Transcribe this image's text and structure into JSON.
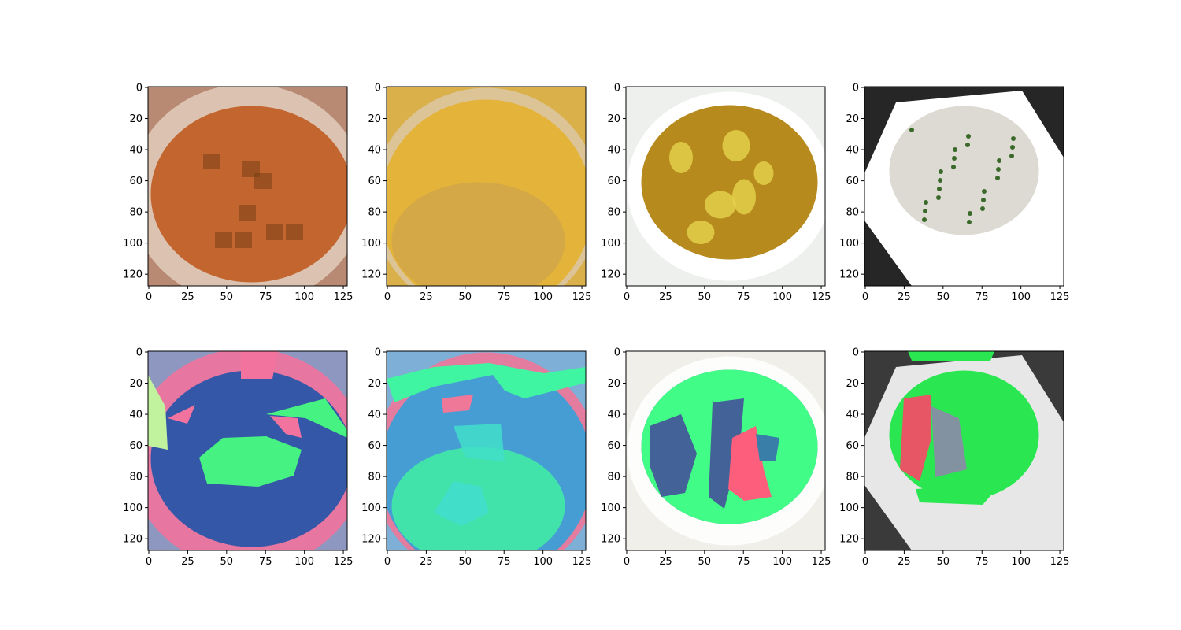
{
  "figure": {
    "background": "#ffffff",
    "panels": [
      {
        "id": "top-1",
        "description": "tomato soup with croutons in white bowl",
        "palette": {
          "bg": "#b88a73",
          "a": "#c2652e",
          "b": "#a85a2a",
          "c": "#e0c9b8",
          "d": "#7a3f18"
        },
        "overlay": false
      },
      {
        "id": "top-2",
        "description": "yellow corn chowder close-up",
        "palette": {
          "bg": "#d9b04a",
          "a": "#e3b33a",
          "b": "#cfa54a",
          "c": "#dcc7a0",
          "d": "#b08a3a"
        },
        "overlay": false
      },
      {
        "id": "top-3",
        "description": "egg drop soup in white bowl on white background",
        "palette": {
          "bg": "#eef0ee",
          "a": "#b78a1e",
          "b": "#e3cf4a",
          "c": "#ffffff",
          "d": "#6b5a1a"
        },
        "overlay": false
      },
      {
        "id": "top-4",
        "description": "clam chowder in white square bowl on dark table",
        "palette": {
          "bg": "#262626",
          "a": "#ffffff",
          "b": "#dcdad2",
          "c": "#c8c0b0",
          "d": "#3a6a2a"
        },
        "overlay": false
      },
      {
        "id": "bottom-1",
        "description": "segmentation overlay on tomato soup",
        "palette": {
          "bg": "#8f98c0",
          "a": "#2a4fa5",
          "b": "#3dff7a",
          "c": "#ff6f9a",
          "d": "#c9ff9a"
        },
        "overlay": true
      },
      {
        "id": "bottom-2",
        "description": "segmentation overlay on corn chowder",
        "palette": {
          "bg": "#7fb0d8",
          "a": "#3f9bd4",
          "b": "#38ff9a",
          "c": "#ff7090",
          "d": "#3ae6c8"
        },
        "overlay": true
      },
      {
        "id": "bottom-3",
        "description": "segmentation overlay on egg drop soup",
        "palette": {
          "bg": "#f1f0ea",
          "a": "#2c4f8d",
          "b": "#2aff7a",
          "c": "#ff4b6e",
          "d": "#1f6fa0"
        },
        "overlay": true
      },
      {
        "id": "bottom-4",
        "description": "segmentation overlay on clam chowder",
        "palette": {
          "bg": "#3b3b3b",
          "a": "#ffffff",
          "b": "#28ff55",
          "c": "#ff5a6a",
          "d": "#8d9fb0"
        },
        "overlay": true
      }
    ],
    "axes": {
      "x_ticks": [
        "0",
        "25",
        "50",
        "75",
        "100",
        "125"
      ],
      "y_ticks": [
        "0",
        "20",
        "40",
        "60",
        "80",
        "100",
        "120"
      ],
      "x_tick_values": [
        0,
        25,
        50,
        75,
        100,
        125
      ],
      "y_tick_values": [
        0,
        20,
        40,
        60,
        80,
        100,
        120
      ],
      "range": [
        0,
        128
      ]
    }
  }
}
